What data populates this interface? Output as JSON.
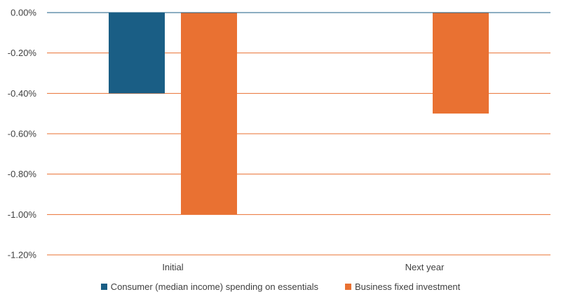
{
  "chart_data": {
    "type": "bar",
    "title": "",
    "xlabel": "",
    "ylabel": "",
    "categories": [
      "Initial",
      "Next year"
    ],
    "series": [
      {
        "name": "Consumer (median income) spending on essentials",
        "values": [
          -0.4,
          null
        ],
        "color": "#1a5e85"
      },
      {
        "name": "Business fixed investment",
        "values": [
          -1.0,
          -0.5
        ],
        "color": "#e97132"
      }
    ],
    "ylim": [
      -1.2,
      0.0
    ],
    "yticks": [
      0.0,
      -0.2,
      -0.4,
      -0.6,
      -0.8,
      -1.0,
      -1.2
    ],
    "ytick_labels": [
      "0.00%",
      "-0.20%",
      "-0.40%",
      "-0.60%",
      "-0.80%",
      "-1.00%",
      "-1.20%"
    ],
    "gridline_color": "#e97132",
    "zero_line_color": "#1a5e85",
    "legend_position": "bottom"
  }
}
